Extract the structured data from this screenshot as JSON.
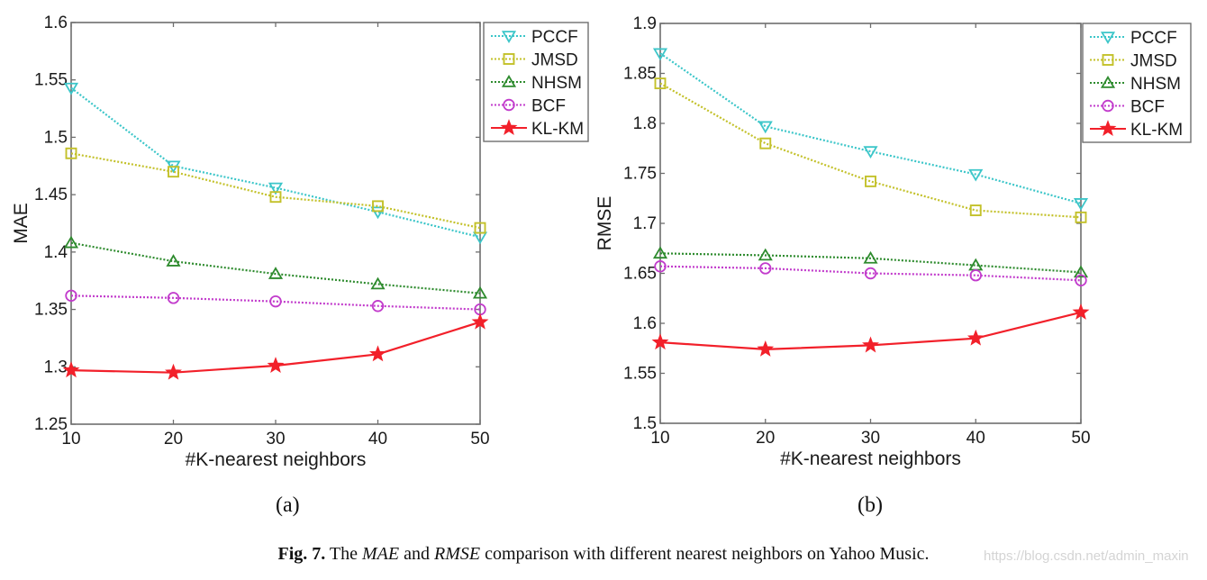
{
  "chart_data": [
    {
      "type": "line",
      "id": "a",
      "title": "",
      "xlabel": "#K-nearest neighbors",
      "ylabel": "MAE",
      "x": [
        10,
        20,
        30,
        40,
        50
      ],
      "xlim": [
        10,
        50
      ],
      "ylim": [
        1.25,
        1.6
      ],
      "xticks": [
        "10",
        "20",
        "30",
        "40",
        "50"
      ],
      "yticks": [
        "1.25",
        "1.3",
        "1.35",
        "1.4",
        "1.45",
        "1.5",
        "1.55",
        "1.6"
      ],
      "ytick_values": [
        1.25,
        1.3,
        1.35,
        1.4,
        1.45,
        1.5,
        1.55,
        1.6
      ],
      "grid": false,
      "legend_position": "outside-top-right",
      "series": [
        {
          "name": "PCCF",
          "values": [
            1.543,
            1.475,
            1.456,
            1.435,
            1.413
          ]
        },
        {
          "name": "JMSD",
          "values": [
            1.486,
            1.47,
            1.448,
            1.44,
            1.421
          ]
        },
        {
          "name": "NHSM",
          "values": [
            1.408,
            1.392,
            1.381,
            1.372,
            1.364
          ]
        },
        {
          "name": "BCF",
          "values": [
            1.362,
            1.36,
            1.357,
            1.353,
            1.35
          ]
        },
        {
          "name": "KL-KM",
          "values": [
            1.297,
            1.295,
            1.301,
            1.311,
            1.339
          ]
        }
      ]
    },
    {
      "type": "line",
      "id": "b",
      "title": "",
      "xlabel": "#K-nearest neighbors",
      "ylabel": "RMSE",
      "x": [
        10,
        20,
        30,
        40,
        50
      ],
      "xlim": [
        10,
        50
      ],
      "ylim": [
        1.5,
        1.9
      ],
      "xticks": [
        "10",
        "20",
        "30",
        "40",
        "50"
      ],
      "yticks": [
        "1.5",
        "1.55",
        "1.6",
        "1.65",
        "1.7",
        "1.75",
        "1.8",
        "1.85",
        "1.9"
      ],
      "ytick_values": [
        1.5,
        1.55,
        1.6,
        1.65,
        1.7,
        1.75,
        1.8,
        1.85,
        1.9
      ],
      "grid": false,
      "legend_position": "outside-top-right",
      "series": [
        {
          "name": "PCCF",
          "values": [
            1.87,
            1.797,
            1.772,
            1.749,
            1.72
          ]
        },
        {
          "name": "JMSD",
          "values": [
            1.84,
            1.78,
            1.742,
            1.713,
            1.706
          ]
        },
        {
          "name": "NHSM",
          "values": [
            1.67,
            1.668,
            1.665,
            1.658,
            1.651
          ]
        },
        {
          "name": "BCF",
          "values": [
            1.657,
            1.655,
            1.65,
            1.648,
            1.643
          ]
        },
        {
          "name": "KL-KM",
          "values": [
            1.581,
            1.574,
            1.578,
            1.585,
            1.611
          ]
        }
      ]
    }
  ],
  "series_styles": {
    "PCCF": {
      "color": "#3cc6c9",
      "marker": "triangle-down",
      "line": "dotted"
    },
    "JMSD": {
      "color": "#c3c12a",
      "marker": "square",
      "line": "dotted"
    },
    "NHSM": {
      "color": "#2e8b2e",
      "marker": "triangle-up",
      "line": "dotted"
    },
    "BCF": {
      "color": "#c23ccc",
      "marker": "circle",
      "line": "dotted"
    },
    "KL-KM": {
      "color": "#f2202a",
      "marker": "star",
      "line": "solid"
    }
  },
  "subfigure_labels": [
    "(a)",
    "(b)"
  ],
  "caption": {
    "fig": "Fig. 7.",
    "t1": " The ",
    "mae": "MAE",
    "t2": " and ",
    "rmse": "RMSE",
    "t3": " comparison with different nearest neighbors on Yahoo Music."
  },
  "watermark": "https://blog.csdn.net/admin_maxin"
}
